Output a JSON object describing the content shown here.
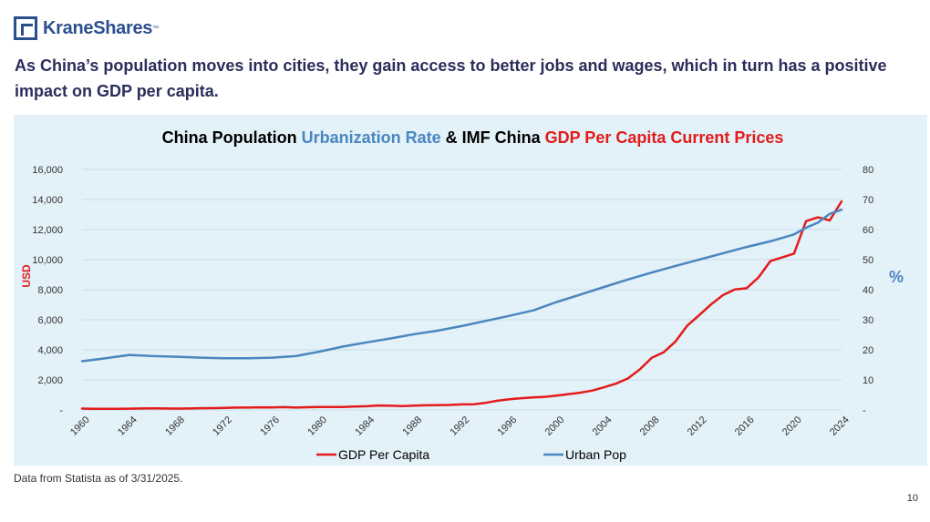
{
  "brand": {
    "name": "KraneShares",
    "tm": "™"
  },
  "headline": "As China’s population moves into cities, they gain access to better jobs and wages, which in turn has a positive impact on GDP per capita.",
  "chart_data": {
    "type": "line",
    "title_parts": {
      "p1": "China Population ",
      "p2": "Urbanization Rate",
      "p3": " & IMF China ",
      "p4": "GDP Per Capita Current Prices"
    },
    "ylabel_left": "USD",
    "ylabel_right": "%",
    "ylim_left": [
      0,
      16000
    ],
    "ylim_right": [
      0,
      80
    ],
    "left_ticks": [
      "-",
      "2,000",
      "4,000",
      "6,000",
      "8,000",
      "10,000",
      "12,000",
      "14,000",
      "16,000"
    ],
    "right_ticks": [
      "-",
      "10",
      "20",
      "30",
      "40",
      "50",
      "60",
      "70",
      "80"
    ],
    "x_ticks": [
      "1960",
      "1964",
      "1968",
      "1972",
      "1976",
      "1980",
      "1984",
      "1988",
      "1992",
      "1996",
      "2000",
      "2004",
      "2008",
      "2012",
      "2016",
      "2020",
      "2024"
    ],
    "grid": "horizontal",
    "legend_position": "bottom",
    "series": [
      {
        "name": "GDP Per Capita",
        "axis": "left",
        "color": "#e31b1b",
        "x": [
          1960,
          1961,
          1962,
          1963,
          1964,
          1965,
          1966,
          1967,
          1968,
          1969,
          1970,
          1971,
          1972,
          1973,
          1974,
          1975,
          1976,
          1977,
          1978,
          1979,
          1980,
          1981,
          1982,
          1983,
          1984,
          1985,
          1986,
          1987,
          1988,
          1989,
          1990,
          1991,
          1992,
          1993,
          1994,
          1995,
          1996,
          1997,
          1998,
          1999,
          2000,
          2001,
          2002,
          2003,
          2004,
          2005,
          2006,
          2007,
          2008,
          2009,
          2010,
          2011,
          2012,
          2013,
          2014,
          2015,
          2016,
          2017,
          2018,
          2019,
          2020,
          2021,
          2022,
          2023,
          2024
        ],
        "values": [
          90,
          76,
          70,
          74,
          85,
          98,
          104,
          97,
          91,
          100,
          113,
          119,
          132,
          157,
          160,
          178,
          165,
          185,
          156,
          183,
          195,
          197,
          203,
          225,
          250,
          294,
          281,
          252,
          283,
          310,
          318,
          333,
          368,
          377,
          473,
          610,
          709,
          781,
          828,
          873,
          959,
          1053,
          1149,
          1289,
          1509,
          1753,
          2099,
          2694,
          3468,
          3832,
          4550,
          5614,
          6301,
          7020,
          7636,
          8016,
          8094,
          8817,
          9905,
          10143,
          10409,
          12556,
          12814,
          12614,
          13870
        ]
      },
      {
        "name": "Urban Pop",
        "axis": "right",
        "color": "#4a86c0",
        "x": [
          1960,
          1962,
          1964,
          1966,
          1968,
          1970,
          1972,
          1974,
          1976,
          1978,
          1980,
          1982,
          1984,
          1986,
          1988,
          1990,
          1992,
          1994,
          1996,
          1998,
          2000,
          2002,
          2004,
          2006,
          2008,
          2010,
          2012,
          2014,
          2016,
          2018,
          2020,
          2021,
          2022,
          2023,
          2024
        ],
        "values": [
          16.2,
          17.2,
          18.3,
          17.9,
          17.7,
          17.4,
          17.2,
          17.2,
          17.4,
          17.9,
          19.4,
          21.1,
          22.5,
          23.8,
          25.2,
          26.4,
          27.9,
          29.6,
          31.3,
          33.1,
          35.9,
          38.4,
          40.9,
          43.4,
          45.7,
          47.9,
          50.0,
          52.1,
          54.2,
          56.1,
          58.4,
          60.6,
          62.3,
          65.2,
          66.6
        ]
      }
    ]
  },
  "footnote": "Data from Statista as of 3/31/2025.",
  "page_number": "10"
}
